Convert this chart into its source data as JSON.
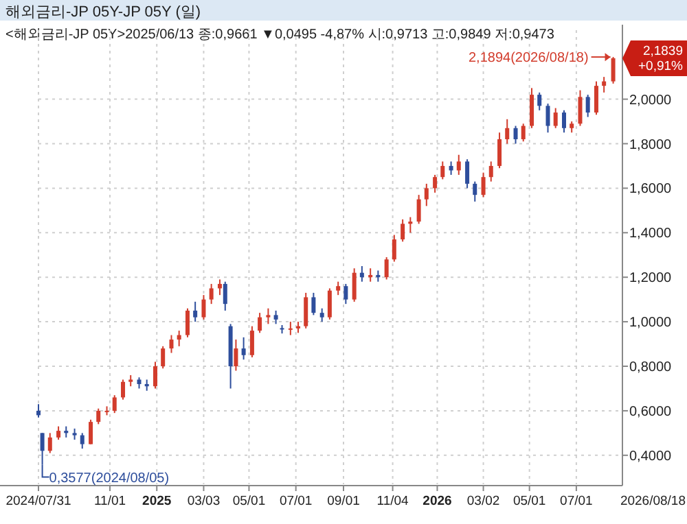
{
  "chart_data": {
    "type": "candlestick",
    "title": "해외금리-JP      05Y-JP 05Y (일)",
    "subtitle": "<해외금리-JP 05Y>2025/06/13 종:0,9661 ▼0,0495 -4,87% 시:0,9713 고:0,9849 저:0,9473",
    "x": [
      "2024-07-31",
      "2024-08-05",
      "2024-08-15",
      "2024-08-26",
      "2024-09-05",
      "2024-09-16",
      "2024-09-26",
      "2024-10-07",
      "2024-10-17",
      "2024-10-28",
      "2024-11-07",
      "2024-11-18",
      "2024-11-28",
      "2024-12-09",
      "2024-12-19",
      "2024-12-30",
      "2025-01-09",
      "2025-01-20",
      "2025-01-30",
      "2025-02-10",
      "2025-02-20",
      "2025-03-03",
      "2025-03-13",
      "2025-03-24",
      "2025-03-31",
      "2025-04-07",
      "2025-04-14",
      "2025-04-24",
      "2025-05-05",
      "2025-05-15",
      "2025-05-26",
      "2025-06-05",
      "2025-06-13",
      "2025-06-24",
      "2025-07-04",
      "2025-07-14",
      "2025-07-24",
      "2025-08-04",
      "2025-08-14",
      "2025-08-25",
      "2025-09-04",
      "2025-09-15",
      "2025-09-25",
      "2025-10-06",
      "2025-10-16",
      "2025-10-27",
      "2025-11-06",
      "2025-11-17",
      "2025-11-27",
      "2025-12-08",
      "2025-12-18",
      "2025-12-29",
      "2026-01-08",
      "2026-01-19",
      "2026-01-29",
      "2026-02-09",
      "2026-02-19",
      "2026-03-02",
      "2026-03-12",
      "2026-03-23",
      "2026-04-02",
      "2026-04-13",
      "2026-04-23",
      "2026-05-04",
      "2026-05-14",
      "2026-05-25",
      "2026-06-04",
      "2026-06-15",
      "2026-06-25",
      "2026-07-06",
      "2026-07-16",
      "2026-07-27",
      "2026-08-06",
      "2026-08-18"
    ],
    "ohlc": [
      [
        0.6,
        0.63,
        0.57,
        0.58
      ],
      [
        0.5,
        0.5,
        0.3577,
        0.42
      ],
      [
        0.42,
        0.5,
        0.41,
        0.48
      ],
      [
        0.48,
        0.53,
        0.47,
        0.51
      ],
      [
        0.51,
        0.53,
        0.48,
        0.5
      ],
      [
        0.5,
        0.52,
        0.47,
        0.49
      ],
      [
        0.49,
        0.5,
        0.43,
        0.45
      ],
      [
        0.45,
        0.56,
        0.45,
        0.55
      ],
      [
        0.55,
        0.61,
        0.54,
        0.6
      ],
      [
        0.6,
        0.62,
        0.58,
        0.6
      ],
      [
        0.6,
        0.67,
        0.59,
        0.66
      ],
      [
        0.66,
        0.74,
        0.65,
        0.73
      ],
      [
        0.73,
        0.76,
        0.71,
        0.74
      ],
      [
        0.74,
        0.75,
        0.7,
        0.72
      ],
      [
        0.72,
        0.74,
        0.69,
        0.71
      ],
      [
        0.71,
        0.82,
        0.7,
        0.8
      ],
      [
        0.8,
        0.89,
        0.79,
        0.88
      ],
      [
        0.88,
        0.94,
        0.86,
        0.92
      ],
      [
        0.92,
        0.96,
        0.89,
        0.94
      ],
      [
        0.94,
        1.06,
        0.93,
        1.05
      ],
      [
        1.05,
        1.09,
        1.0,
        1.02
      ],
      [
        1.02,
        1.12,
        1.01,
        1.1
      ],
      [
        1.1,
        1.17,
        1.08,
        1.15
      ],
      [
        1.15,
        1.19,
        1.12,
        1.17
      ],
      [
        1.17,
        1.18,
        1.05,
        1.08
      ],
      [
        0.98,
        0.99,
        0.7,
        0.8
      ],
      [
        0.8,
        0.92,
        0.78,
        0.88
      ],
      [
        0.88,
        0.93,
        0.83,
        0.85
      ],
      [
        0.85,
        0.98,
        0.84,
        0.96
      ],
      [
        0.96,
        1.04,
        0.95,
        1.02
      ],
      [
        1.02,
        1.06,
        0.99,
        1.03
      ],
      [
        1.03,
        1.05,
        0.99,
        1.01
      ],
      [
        0.9713,
        0.9849,
        0.9473,
        0.9661
      ],
      [
        0.97,
        1.0,
        0.94,
        0.97
      ],
      [
        0.97,
        1.0,
        0.95,
        0.98
      ],
      [
        0.98,
        1.13,
        0.97,
        1.11
      ],
      [
        1.11,
        1.13,
        1.03,
        1.04
      ],
      [
        1.04,
        1.06,
        1.0,
        1.02
      ],
      [
        1.02,
        1.15,
        1.01,
        1.14
      ],
      [
        1.14,
        1.18,
        1.12,
        1.16
      ],
      [
        1.16,
        1.17,
        1.08,
        1.1
      ],
      [
        1.1,
        1.24,
        1.09,
        1.22
      ],
      [
        1.22,
        1.25,
        1.18,
        1.2
      ],
      [
        1.2,
        1.24,
        1.18,
        1.21
      ],
      [
        1.21,
        1.23,
        1.18,
        1.2
      ],
      [
        1.2,
        1.29,
        1.19,
        1.28
      ],
      [
        1.28,
        1.39,
        1.27,
        1.37
      ],
      [
        1.37,
        1.46,
        1.36,
        1.44
      ],
      [
        1.44,
        1.47,
        1.4,
        1.45
      ],
      [
        1.45,
        1.57,
        1.44,
        1.55
      ],
      [
        1.55,
        1.62,
        1.52,
        1.6
      ],
      [
        1.6,
        1.66,
        1.58,
        1.65
      ],
      [
        1.65,
        1.72,
        1.64,
        1.7
      ],
      [
        1.7,
        1.72,
        1.66,
        1.68
      ],
      [
        1.68,
        1.75,
        1.66,
        1.72
      ],
      [
        1.72,
        1.73,
        1.6,
        1.62
      ],
      [
        1.62,
        1.63,
        1.54,
        1.57
      ],
      [
        1.57,
        1.67,
        1.56,
        1.65
      ],
      [
        1.65,
        1.72,
        1.63,
        1.7
      ],
      [
        1.7,
        1.85,
        1.69,
        1.82
      ],
      [
        1.82,
        1.91,
        1.8,
        1.87
      ],
      [
        1.87,
        1.88,
        1.8,
        1.82
      ],
      [
        1.82,
        1.89,
        1.81,
        1.88
      ],
      [
        1.88,
        2.05,
        1.87,
        2.02
      ],
      [
        2.02,
        2.03,
        1.95,
        1.97
      ],
      [
        1.97,
        1.98,
        1.85,
        1.88
      ],
      [
        1.88,
        1.96,
        1.87,
        1.94
      ],
      [
        1.94,
        1.95,
        1.85,
        1.87
      ],
      [
        1.87,
        1.9,
        1.85,
        1.89
      ],
      [
        1.89,
        2.04,
        1.88,
        2.01
      ],
      [
        2.01,
        2.02,
        1.92,
        1.94
      ],
      [
        1.94,
        2.08,
        1.93,
        2.06
      ],
      [
        2.06,
        2.1,
        2.03,
        2.08
      ],
      [
        2.08,
        2.1894,
        2.07,
        2.1839
      ]
    ],
    "colors": [
      "#2e4e9c",
      "#2e4e9c",
      "#d23c2c",
      "#d23c2c",
      "#2e4e9c",
      "#2e4e9c",
      "#2e4e9c",
      "#d23c2c",
      "#d23c2c",
      "#d23c2c",
      "#d23c2c",
      "#d23c2c",
      "#d23c2c",
      "#2e4e9c",
      "#2e4e9c",
      "#d23c2c",
      "#d23c2c",
      "#d23c2c",
      "#d23c2c",
      "#d23c2c",
      "#2e4e9c",
      "#d23c2c",
      "#d23c2c",
      "#d23c2c",
      "#2e4e9c",
      "#2e4e9c",
      "#d23c2c",
      "#2e4e9c",
      "#d23c2c",
      "#d23c2c",
      "#d23c2c",
      "#2e4e9c",
      "#2e4e9c",
      "#d23c2c",
      "#d23c2c",
      "#d23c2c",
      "#2e4e9c",
      "#2e4e9c",
      "#d23c2c",
      "#d23c2c",
      "#2e4e9c",
      "#d23c2c",
      "#2e4e9c",
      "#d23c2c",
      "#2e4e9c",
      "#d23c2c",
      "#d23c2c",
      "#d23c2c",
      "#d23c2c",
      "#d23c2c",
      "#d23c2c",
      "#d23c2c",
      "#d23c2c",
      "#2e4e9c",
      "#d23c2c",
      "#2e4e9c",
      "#2e4e9c",
      "#d23c2c",
      "#d23c2c",
      "#d23c2c",
      "#d23c2c",
      "#2e4e9c",
      "#d23c2c",
      "#d23c2c",
      "#2e4e9c",
      "#2e4e9c",
      "#d23c2c",
      "#2e4e9c",
      "#d23c2c",
      "#d23c2c",
      "#2e4e9c",
      "#d23c2c",
      "#d23c2c",
      "#d23c2c"
    ],
    "xlim": [
      "2024-07-31",
      "2026-08-30"
    ],
    "xticks": [
      {
        "value": "2024-07-31",
        "label": "2024/07/31"
      },
      {
        "value": "2024-11-01",
        "label": "11/01"
      },
      {
        "value": "2025-01-01",
        "label": "2025"
      },
      {
        "value": "2025-03-03",
        "label": "03/03"
      },
      {
        "value": "2025-05-01",
        "label": "05/01"
      },
      {
        "value": "2025-07-01",
        "label": "07/01"
      },
      {
        "value": "2025-09-01",
        "label": "09/01"
      },
      {
        "value": "2025-11-04",
        "label": "11/04"
      },
      {
        "value": "2026-01-01",
        "label": "2026"
      },
      {
        "value": "2026-03-02",
        "label": "03/02"
      },
      {
        "value": "2026-05-01",
        "label": "05/01"
      },
      {
        "value": "2026-07-01",
        "label": "07/01"
      }
    ],
    "ylim": [
      0.27,
      2.31
    ],
    "yticks": [
      {
        "value": 0.4,
        "label": "0,4000"
      },
      {
        "value": 0.6,
        "label": "0,6000"
      },
      {
        "value": 0.8,
        "label": "0,8000"
      },
      {
        "value": 1.0,
        "label": "1,0000"
      },
      {
        "value": 1.2,
        "label": "1,2000"
      },
      {
        "value": 1.4,
        "label": "1,4000"
      },
      {
        "value": 1.6,
        "label": "1,6000"
      },
      {
        "value": 1.8,
        "label": "1,8000"
      },
      {
        "value": 2.0,
        "label": "2,0000"
      }
    ],
    "grid": true,
    "annotations": [
      {
        "text": "2,1894(2026/08/18)",
        "x": "2026-08-18",
        "y": 2.1894
      },
      {
        "text": "0,3577(2024/08/05)",
        "x": "2024-08-05",
        "y": 0.3577
      },
      {
        "text": "2,1839\n+0,91%",
        "x": "2026-08-18",
        "y": 2.1839
      },
      "2026/08/18"
    ]
  }
}
